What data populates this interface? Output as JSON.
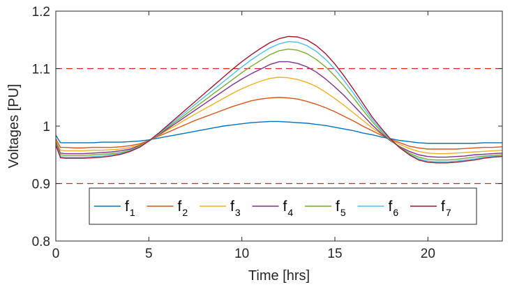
{
  "chart_data": {
    "type": "line",
    "title": "",
    "xlabel": "Time [hrs]",
    "ylabel": "Voltages [PU]",
    "xlim": [
      0,
      24
    ],
    "ylim": [
      0.8,
      1.2
    ],
    "xticks": [
      0,
      5,
      10,
      15,
      20
    ],
    "yticks": [
      0.8,
      0.9,
      1.0,
      1.1,
      1.2
    ],
    "xtick_labels": [
      "0",
      "5",
      "10",
      "15",
      "20"
    ],
    "ytick_labels": [
      "0.8",
      "0.9",
      "1",
      "1.1",
      "1.2"
    ],
    "grid": false,
    "legend_position": "bottom",
    "x": [
      0,
      0.25,
      0.5,
      1,
      1.5,
      2,
      2.5,
      3,
      3.5,
      4,
      4.5,
      5,
      5.5,
      6,
      6.5,
      7,
      7.5,
      8,
      8.5,
      9,
      9.5,
      10,
      10.5,
      11,
      11.5,
      12,
      12.5,
      13,
      13.5,
      14,
      14.5,
      15,
      15.5,
      16,
      16.5,
      17,
      17.5,
      18,
      18.5,
      19,
      19.5,
      20,
      20.5,
      21,
      21.5,
      22,
      22.5,
      23,
      23.5,
      24
    ],
    "series": [
      {
        "name": "f",
        "sub": "1",
        "color": "#0072BD",
        "values": [
          0.984,
          0.971,
          0.971,
          0.971,
          0.971,
          0.971,
          0.972,
          0.972,
          0.972,
          0.973,
          0.974,
          0.976,
          0.979,
          0.982,
          0.985,
          0.988,
          0.991,
          0.994,
          0.997,
          1.0,
          1.002,
          1.004,
          1.006,
          1.007,
          1.008,
          1.008,
          1.007,
          1.006,
          1.005,
          1.003,
          1.001,
          0.998,
          0.995,
          0.992,
          0.988,
          0.985,
          0.981,
          0.978,
          0.975,
          0.973,
          0.971,
          0.97,
          0.97,
          0.97,
          0.97,
          0.97,
          0.97,
          0.971,
          0.971,
          0.971
        ]
      },
      {
        "name": "f",
        "sub": "2",
        "color": "#D95319",
        "values": [
          0.978,
          0.963,
          0.963,
          0.962,
          0.962,
          0.963,
          0.963,
          0.963,
          0.964,
          0.966,
          0.969,
          0.975,
          0.982,
          0.989,
          0.996,
          1.003,
          1.01,
          1.016,
          1.022,
          1.028,
          1.034,
          1.039,
          1.044,
          1.047,
          1.049,
          1.05,
          1.049,
          1.047,
          1.043,
          1.038,
          1.032,
          1.025,
          1.017,
          1.009,
          1.0,
          0.992,
          0.984,
          0.977,
          0.971,
          0.965,
          0.962,
          0.96,
          0.96,
          0.96,
          0.96,
          0.961,
          0.962,
          0.963,
          0.963,
          0.964
        ]
      },
      {
        "name": "f",
        "sub": "3",
        "color": "#EDB120",
        "values": [
          0.975,
          0.958,
          0.957,
          0.957,
          0.957,
          0.958,
          0.958,
          0.959,
          0.96,
          0.963,
          0.967,
          0.974,
          0.983,
          0.993,
          1.002,
          1.012,
          1.021,
          1.03,
          1.039,
          1.048,
          1.057,
          1.065,
          1.072,
          1.078,
          1.083,
          1.085,
          1.084,
          1.081,
          1.076,
          1.069,
          1.059,
          1.048,
          1.036,
          1.023,
          1.01,
          0.997,
          0.986,
          0.976,
          0.968,
          0.961,
          0.956,
          0.953,
          0.952,
          0.952,
          0.953,
          0.954,
          0.955,
          0.956,
          0.957,
          0.958
        ]
      },
      {
        "name": "f",
        "sub": "4",
        "color": "#7E2F8E",
        "values": [
          0.972,
          0.953,
          0.952,
          0.952,
          0.952,
          0.953,
          0.954,
          0.955,
          0.957,
          0.96,
          0.966,
          0.974,
          0.984,
          0.995,
          1.006,
          1.017,
          1.028,
          1.039,
          1.05,
          1.061,
          1.072,
          1.082,
          1.091,
          1.099,
          1.107,
          1.112,
          1.112,
          1.109,
          1.103,
          1.094,
          1.082,
          1.068,
          1.053,
          1.036,
          1.019,
          1.002,
          0.987,
          0.974,
          0.964,
          0.956,
          0.95,
          0.947,
          0.946,
          0.946,
          0.947,
          0.948,
          0.95,
          0.951,
          0.952,
          0.953
        ]
      },
      {
        "name": "f",
        "sub": "5",
        "color": "#77AC30",
        "values": [
          0.97,
          0.95,
          0.949,
          0.949,
          0.949,
          0.95,
          0.951,
          0.952,
          0.954,
          0.958,
          0.965,
          0.974,
          0.985,
          0.997,
          1.009,
          1.021,
          1.033,
          1.045,
          1.057,
          1.069,
          1.081,
          1.093,
          1.104,
          1.114,
          1.124,
          1.131,
          1.134,
          1.132,
          1.126,
          1.116,
          1.103,
          1.087,
          1.069,
          1.049,
          1.028,
          1.008,
          0.99,
          0.975,
          0.963,
          0.953,
          0.946,
          0.942,
          0.941,
          0.941,
          0.942,
          0.944,
          0.946,
          0.948,
          0.949,
          0.95
        ]
      },
      {
        "name": "f",
        "sub": "6",
        "color": "#4DBEEE",
        "values": [
          0.968,
          0.947,
          0.946,
          0.946,
          0.946,
          0.947,
          0.948,
          0.95,
          0.952,
          0.957,
          0.964,
          0.974,
          0.986,
          0.999,
          1.012,
          1.025,
          1.038,
          1.051,
          1.064,
          1.077,
          1.09,
          1.103,
          1.115,
          1.126,
          1.136,
          1.143,
          1.147,
          1.146,
          1.14,
          1.13,
          1.116,
          1.099,
          1.079,
          1.057,
          1.034,
          1.012,
          0.993,
          0.976,
          0.962,
          0.951,
          0.943,
          0.939,
          0.938,
          0.938,
          0.939,
          0.941,
          0.943,
          0.946,
          0.947,
          0.948
        ]
      },
      {
        "name": "f",
        "sub": "7",
        "color": "#A2142F",
        "values": [
          0.967,
          0.945,
          0.944,
          0.944,
          0.944,
          0.945,
          0.946,
          0.948,
          0.951,
          0.956,
          0.963,
          0.974,
          0.987,
          1.001,
          1.015,
          1.029,
          1.043,
          1.057,
          1.071,
          1.085,
          1.099,
          1.112,
          1.124,
          1.135,
          1.145,
          1.152,
          1.156,
          1.155,
          1.15,
          1.14,
          1.126,
          1.108,
          1.087,
          1.064,
          1.04,
          1.016,
          0.996,
          0.977,
          0.962,
          0.95,
          0.941,
          0.937,
          0.936,
          0.936,
          0.937,
          0.939,
          0.941,
          0.944,
          0.946,
          0.947
        ]
      }
    ],
    "reference_lines": [
      {
        "y": 1.1,
        "color": "#E02020",
        "style": "dashed"
      },
      {
        "y": 0.9,
        "color": "#E02020",
        "style": "dashed"
      }
    ]
  }
}
